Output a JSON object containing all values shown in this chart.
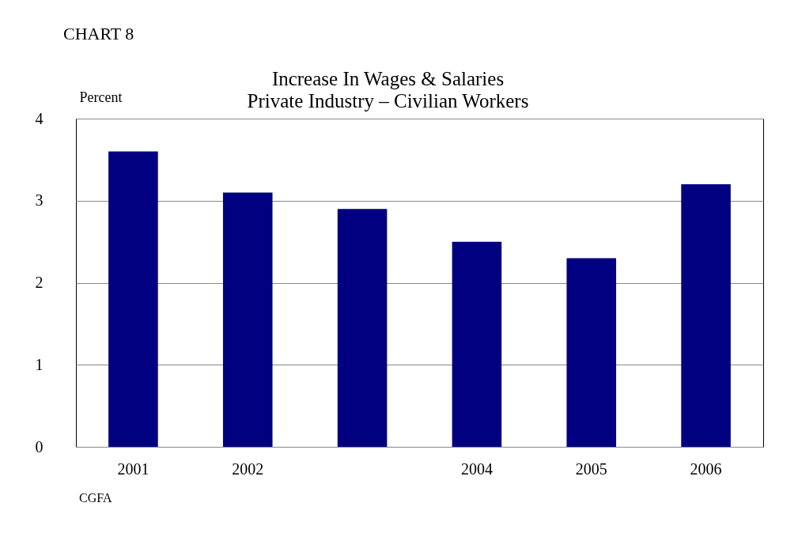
{
  "chart_data": {
    "type": "bar",
    "title": "Increase In Wages & Salaries",
    "subtitle": "Private Industry – Civilian Workers",
    "ylabel": "Percent",
    "annotations": [
      "CHART 8",
      "CGFA"
    ],
    "categories": [
      "2001",
      "2002",
      null,
      "2004",
      "2005",
      "2006"
    ],
    "values": [
      3.6,
      3.1,
      2.9,
      2.5,
      2.3,
      3.2
    ],
    "color": "#000080",
    "ylim": [
      0,
      4
    ],
    "yticks": [
      0,
      1,
      2,
      3,
      4
    ],
    "grid": "y"
  }
}
